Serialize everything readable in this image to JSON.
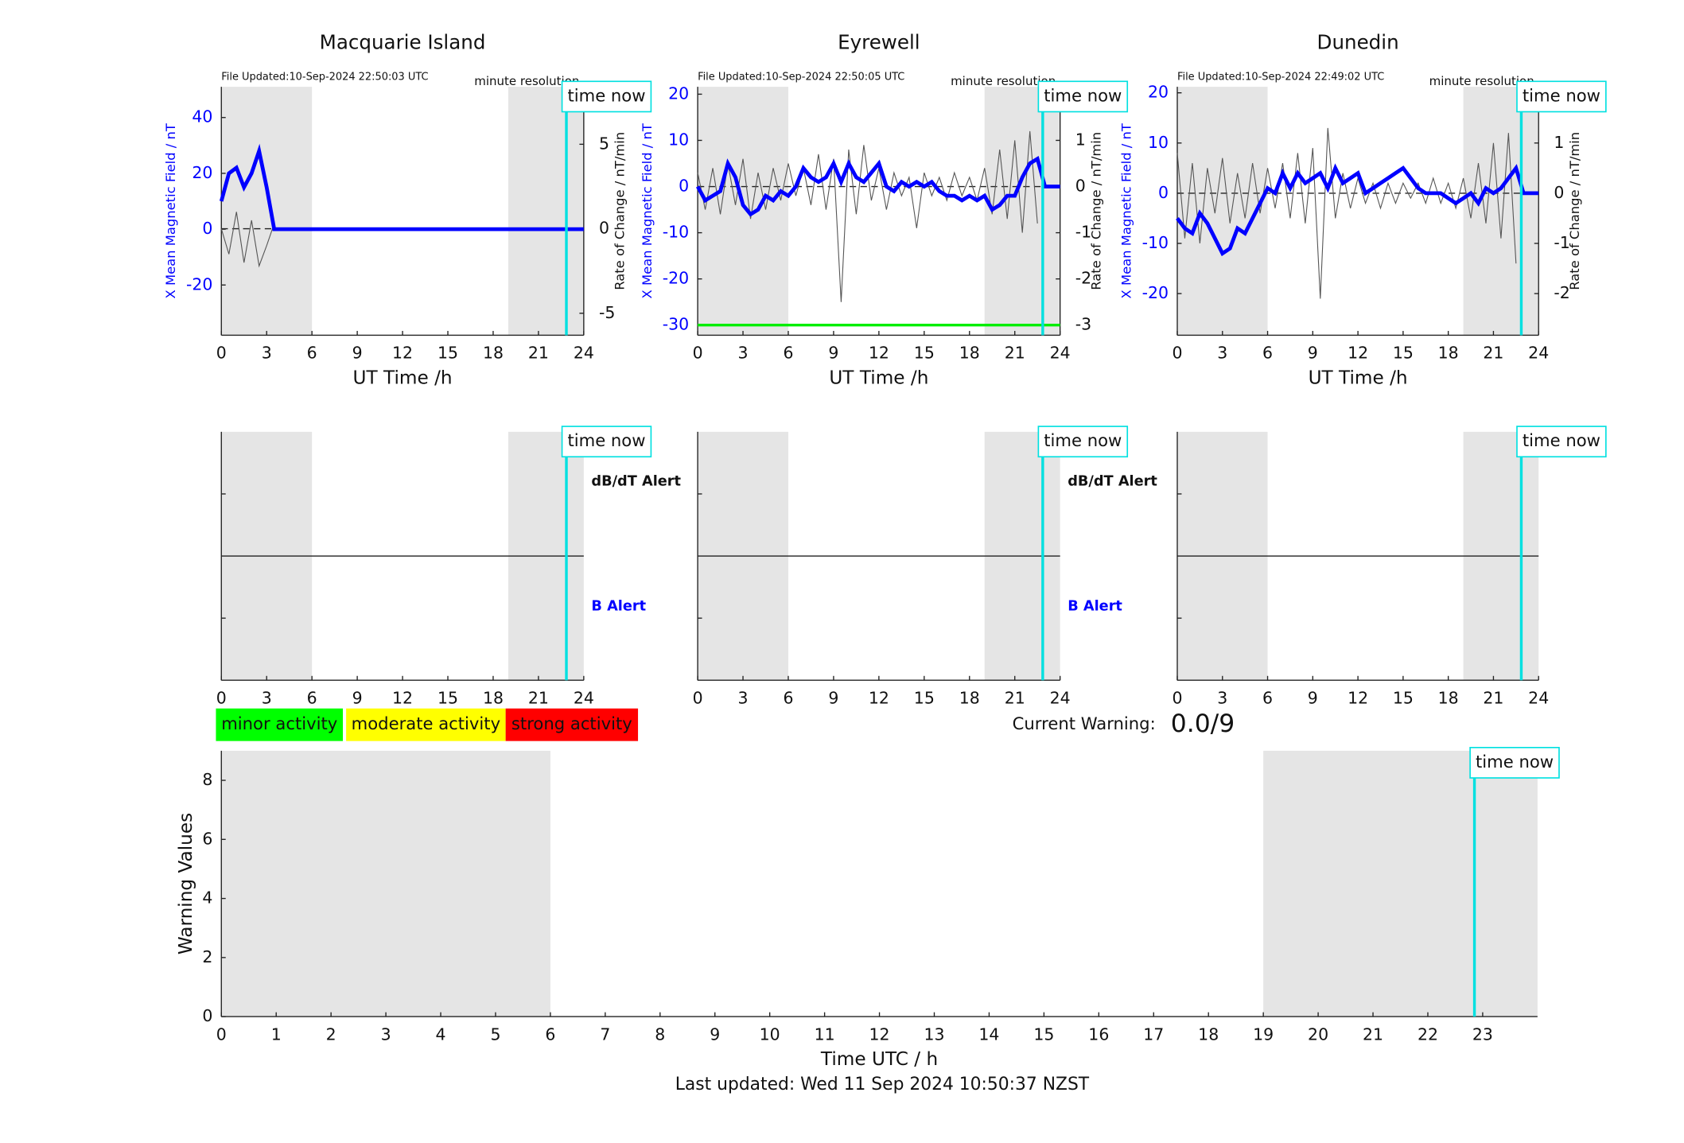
{
  "chart_data": [
    {
      "type": "line",
      "title": "Macquarie Island",
      "file_updated": "File Updated:10-Sep-2024 22:50:03 UTC",
      "resolution": "minute resolution",
      "ylabel": "X Mean Magnetic Field / nT",
      "y2label": "Rate of Change / nT/min",
      "xlabel": "UT Time /h",
      "xlim": [
        0,
        24
      ],
      "xticks": [
        0,
        3,
        6,
        9,
        12,
        15,
        18,
        21,
        24
      ],
      "ylim": [
        -38,
        51
      ],
      "yticks": [
        -20,
        0,
        20,
        40
      ],
      "y2lim": [
        -6.3,
        8.4
      ],
      "y2ticks": [
        -5,
        0,
        5
      ],
      "shaded": [
        [
          0,
          6
        ],
        [
          19,
          24
        ]
      ],
      "shade_color": "#e5e5e5",
      "time_now": 22.85,
      "time_now_label": "time now",
      "time_now_color": "#00e0e0",
      "ycolor": "#0000ff",
      "x": [
        0,
        0.5,
        1,
        1.5,
        2,
        2.5,
        3,
        3.5,
        4,
        4.5,
        5,
        5.5,
        6,
        6.5,
        7,
        7.5,
        8,
        8.5,
        9,
        9.5,
        10,
        10.5,
        11,
        11.5,
        12,
        12.5,
        13,
        13.5,
        14,
        14.5,
        15,
        15.5,
        16,
        16.5,
        17,
        17.5,
        18,
        18.5,
        19,
        19.5,
        20,
        20.5,
        21,
        21.5,
        22,
        22.5,
        23,
        23.5,
        24
      ],
      "series": [
        {
          "color": "#555555",
          "axis": "y2",
          "values": [
            0,
            -1.5,
            1.0,
            -2.0,
            0.5,
            -2.2,
            -1.0,
            0.3,
            null,
            null,
            null,
            null,
            null,
            null,
            null,
            null,
            null,
            null,
            null,
            null,
            null,
            null,
            null,
            null,
            null,
            null,
            null,
            null,
            null,
            null,
            null,
            null,
            null,
            null,
            null,
            null,
            null,
            null,
            null,
            null,
            null,
            null,
            null,
            null,
            null,
            null,
            null,
            null,
            null
          ]
        },
        {
          "color": "#0000ff",
          "values": [
            10,
            20,
            22,
            15,
            20,
            28,
            15,
            0,
            0,
            0,
            0,
            0,
            0,
            0,
            0,
            0,
            0,
            0,
            0,
            0,
            0,
            0,
            0,
            0,
            0,
            0,
            0,
            0,
            0,
            0,
            0,
            0,
            0,
            0,
            0,
            0,
            0,
            0,
            0,
            0,
            0,
            0,
            0,
            0,
            0,
            0,
            0,
            0,
            0
          ]
        }
      ]
    },
    {
      "type": "line",
      "title": "Eyrewell",
      "file_updated": "File Updated:10-Sep-2024 22:50:05 UTC",
      "resolution": "minute resolution",
      "ylabel": "X Mean Magnetic Field / nT",
      "y2label": "Rate of Change / nT/min",
      "xlabel": "UT Time /h",
      "xlim": [
        0,
        24
      ],
      "xticks": [
        0,
        3,
        6,
        9,
        12,
        15,
        18,
        21,
        24
      ],
      "ylim": [
        -32.2,
        21.6
      ],
      "yticks": [
        -30,
        -20,
        -10,
        0,
        10,
        20
      ],
      "y2lim": [
        -3.22,
        2.16
      ],
      "y2ticks": [
        -3,
        -2,
        -1,
        0,
        1,
        2
      ],
      "shaded": [
        [
          0,
          6
        ],
        [
          19,
          24
        ]
      ],
      "shade_color": "#e5e5e5",
      "time_now": 22.85,
      "time_now_label": "time now",
      "time_now_color": "#00e0e0",
      "ycolor": "#0000ff",
      "threshold": -30,
      "threshold_color": "#00ee00",
      "x": [
        0,
        0.5,
        1,
        1.5,
        2,
        2.5,
        3,
        3.5,
        4,
        4.5,
        5,
        5.5,
        6,
        6.5,
        7,
        7.5,
        8,
        8.5,
        9,
        9.5,
        10,
        10.5,
        11,
        11.5,
        12,
        12.5,
        13,
        13.5,
        14,
        14.5,
        15,
        15.5,
        16,
        16.5,
        17,
        17.5,
        18,
        18.5,
        19,
        19.5,
        20,
        20.5,
        21,
        21.5,
        22,
        22.5,
        23,
        23.5,
        24
      ],
      "series": [
        {
          "color": "#555555",
          "axis": "y2",
          "values": [
            0.3,
            -0.5,
            0.4,
            -0.6,
            0.5,
            -0.4,
            0.6,
            -0.7,
            0.3,
            -0.5,
            0.4,
            -0.3,
            0.5,
            -0.2,
            0.4,
            -0.4,
            0.7,
            -0.5,
            0.6,
            -2.5,
            0.8,
            -0.6,
            0.9,
            -0.3,
            0.4,
            -0.5,
            0.3,
            -0.2,
            0.2,
            -0.9,
            0.3,
            -0.2,
            0.2,
            -0.3,
            0.3,
            -0.2,
            0.2,
            -0.3,
            0.4,
            -0.6,
            0.8,
            -0.7,
            1.0,
            -1.0,
            1.2,
            -0.8,
            null,
            null,
            null
          ]
        },
        {
          "color": "#0000ff",
          "values": [
            0,
            -3,
            -2,
            -1,
            5,
            2,
            -4,
            -6,
            -5,
            -2,
            -3,
            -1,
            -2,
            0,
            4,
            2,
            1,
            2,
            5,
            1,
            5,
            2,
            1,
            3,
            5,
            0,
            -1,
            1,
            0,
            1,
            0,
            1,
            -1,
            -2,
            -2,
            -3,
            -2,
            -3,
            -2,
            -5,
            -4,
            -2,
            -2,
            2,
            5,
            6,
            0,
            0,
            0
          ]
        }
      ]
    },
    {
      "type": "line",
      "title": "Dunedin",
      "file_updated": "File Updated:10-Sep-2024 22:49:02 UTC",
      "resolution": "minute resolution",
      "ylabel": "X Mean Magnetic Field / nT",
      "y2label": "Rate of Change / nT/min",
      "xlabel": "UT Time /h",
      "xlim": [
        0,
        24
      ],
      "xticks": [
        0,
        3,
        6,
        9,
        12,
        15,
        18,
        21,
        24
      ],
      "ylim": [
        -28.3,
        21.2
      ],
      "yticks": [
        -20,
        -10,
        0,
        10,
        20
      ],
      "y2lim": [
        -2.83,
        2.12
      ],
      "y2ticks": [
        -2,
        -1,
        0,
        1,
        2
      ],
      "shaded": [
        [
          0,
          6
        ],
        [
          19,
          24
        ]
      ],
      "shade_color": "#e5e5e5",
      "time_now": 22.85,
      "time_now_label": "time now",
      "time_now_color": "#00e0e0",
      "ycolor": "#0000ff",
      "x": [
        0,
        0.5,
        1,
        1.5,
        2,
        2.5,
        3,
        3.5,
        4,
        4.5,
        5,
        5.5,
        6,
        6.5,
        7,
        7.5,
        8,
        8.5,
        9,
        9.5,
        10,
        10.5,
        11,
        11.5,
        12,
        12.5,
        13,
        13.5,
        14,
        14.5,
        15,
        15.5,
        16,
        16.5,
        17,
        17.5,
        18,
        18.5,
        19,
        19.5,
        20,
        20.5,
        21,
        21.5,
        22,
        22.5,
        23,
        23.5,
        24
      ],
      "series": [
        {
          "color": "#555555",
          "axis": "y2",
          "values": [
            0.8,
            -0.9,
            0.6,
            -1.0,
            0.5,
            -0.4,
            0.7,
            -0.6,
            0.4,
            -0.5,
            0.6,
            -0.4,
            0.5,
            -0.3,
            0.6,
            -0.5,
            0.8,
            -0.6,
            0.9,
            -2.1,
            1.3,
            -0.5,
            0.4,
            -0.3,
            0.3,
            -0.2,
            0.2,
            -0.3,
            0.2,
            -0.2,
            0.2,
            -0.1,
            0.2,
            -0.2,
            0.3,
            -0.2,
            0.2,
            -0.3,
            0.3,
            -0.5,
            0.6,
            -0.6,
            1.0,
            -0.9,
            1.2,
            -1.4,
            null,
            null,
            null
          ]
        },
        {
          "color": "#0000ff",
          "values": [
            -5,
            -7,
            -8,
            -4,
            -6,
            -9,
            -12,
            -11,
            -7,
            -8,
            -5,
            -2,
            1,
            0,
            4,
            1,
            4,
            2,
            3,
            4,
            1,
            5,
            2,
            3,
            4,
            0,
            1,
            2,
            3,
            4,
            5,
            3,
            1,
            0,
            0,
            0,
            -1,
            -2,
            -1,
            0,
            -2,
            1,
            0,
            1,
            3,
            5,
            0,
            0,
            0
          ]
        }
      ]
    },
    {
      "type": "alert",
      "xlim": [
        0,
        24
      ],
      "xticks": [
        0,
        3,
        6,
        9,
        12,
        15,
        18,
        21,
        24
      ],
      "shaded": [
        [
          0,
          6
        ],
        [
          19,
          24
        ]
      ],
      "shade_color": "#e5e5e5",
      "time_now": 22.85,
      "time_now_label": "time now",
      "time_now_color": "#00e0e0",
      "alert_labels": [
        {
          "text": "dB/dT Alert",
          "color": "#111111"
        },
        {
          "text": "B Alert",
          "color": "#0000ff"
        }
      ]
    },
    {
      "type": "alert",
      "xlim": [
        0,
        24
      ],
      "xticks": [
        0,
        3,
        6,
        9,
        12,
        15,
        18,
        21,
        24
      ],
      "shaded": [
        [
          0,
          6
        ],
        [
          19,
          24
        ]
      ],
      "shade_color": "#e5e5e5",
      "time_now": 22.85,
      "time_now_label": "time now",
      "time_now_color": "#00e0e0",
      "alert_labels": [
        {
          "text": "dB/dT Alert",
          "color": "#111111"
        },
        {
          "text": "B Alert",
          "color": "#0000ff"
        }
      ]
    },
    {
      "type": "alert",
      "xlim": [
        0,
        24
      ],
      "xticks": [
        0,
        3,
        6,
        9,
        12,
        15,
        18,
        21,
        24
      ],
      "shaded": [
        [
          0,
          6
        ],
        [
          19,
          24
        ]
      ],
      "shade_color": "#e5e5e5",
      "time_now": 22.85,
      "time_now_label": "time now",
      "time_now_color": "#00e0e0",
      "alert_labels": []
    },
    {
      "type": "bar",
      "ylabel": "Warning Values",
      "xlabel": "Time UTC / h",
      "xlim": [
        0,
        24
      ],
      "xticks": [
        0,
        1,
        2,
        3,
        4,
        5,
        6,
        7,
        8,
        9,
        10,
        11,
        12,
        13,
        14,
        15,
        16,
        17,
        18,
        19,
        20,
        21,
        22,
        23
      ],
      "ylim": [
        0,
        9
      ],
      "yticks": [
        0,
        2,
        4,
        6,
        8
      ],
      "shaded": [
        [
          0,
          6
        ],
        [
          19,
          24
        ]
      ],
      "shade_color": "#e5e5e5",
      "time_now": 22.85,
      "time_now_label": "time now",
      "time_now_color": "#00e0e0",
      "activity_levels": [
        {
          "label": "minor activity",
          "color": "#00ff00"
        },
        {
          "label": "moderate activity",
          "color": "#ffff00"
        },
        {
          "label": "strong activity",
          "color": "#ff0000"
        }
      ],
      "current_warning_label": "Current Warning:",
      "current_warning": "0.0/9",
      "footer": "Last updated: Wed 11 Sep 2024 10:50:37 NZST"
    }
  ]
}
